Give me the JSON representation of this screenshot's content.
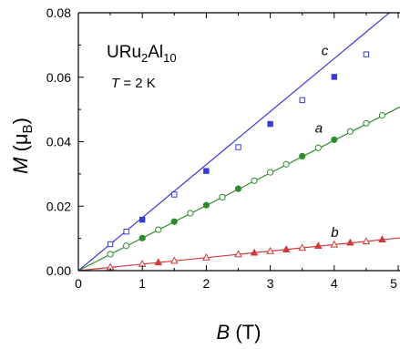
{
  "chart_data": {
    "type": "scatter",
    "xlabel": {
      "symbol": "B",
      "unit": "(T)"
    },
    "ylabel": {
      "symbol": "M",
      "unit_open": "(",
      "unit_sym": "μ",
      "unit_sub": "B",
      "unit_close": ")"
    },
    "xlim": [
      0,
      5
    ],
    "ylim": [
      0,
      0.08
    ],
    "x_ticks": [
      "0",
      "1",
      "2",
      "3",
      "4",
      "5"
    ],
    "y_ticks": [
      "0.00",
      "0.02",
      "0.04",
      "0.06",
      "0.08"
    ],
    "grid": false,
    "annotations": {
      "compound": {
        "part1": "URu",
        "sub1": "2",
        "part2": "Al",
        "sub2": "10"
      },
      "temperature": {
        "symbol": "T",
        "value": " = 2 K"
      }
    },
    "series": [
      {
        "name": "c",
        "color": "#3a3ad6",
        "marker": "square",
        "fit_slope": 0.01645,
        "open_points": {
          "x": [
            0.5,
            0.75,
            1.5,
            2.5,
            3.5,
            4.5
          ],
          "y": [
            0.0082,
            0.0121,
            0.0236,
            0.0383,
            0.0529,
            0.0671
          ]
        },
        "filled_points": {
          "x": [
            1.0,
            2.0,
            3.0,
            4.0
          ],
          "y": [
            0.0158,
            0.0309,
            0.0455,
            0.0601
          ]
        }
      },
      {
        "name": "a",
        "color": "#2e8b2e",
        "marker": "circle",
        "fit_slope": 0.0101,
        "open_points": {
          "x": [
            0.5,
            0.75,
            1.25,
            1.75,
            2.25,
            2.75,
            3.0,
            3.25,
            3.75,
            4.25,
            4.5,
            4.75
          ],
          "y": [
            0.0051,
            0.0077,
            0.0127,
            0.0178,
            0.0228,
            0.0279,
            0.0305,
            0.033,
            0.0381,
            0.0432,
            0.0457,
            0.0482
          ]
        },
        "filled_points": {
          "x": [
            1.0,
            1.5,
            2.0,
            2.5,
            3.5,
            4.0
          ],
          "y": [
            0.0101,
            0.0152,
            0.0203,
            0.0254,
            0.0355,
            0.0406
          ]
        }
      },
      {
        "name": "b",
        "color": "#d03a3a",
        "marker": "triangle",
        "fit_slope": 0.00202,
        "open_points": {
          "x": [
            0.5,
            1.0,
            1.5,
            2.0,
            2.5,
            3.0,
            3.5,
            4.0,
            4.5
          ],
          "y": [
            0.0011,
            0.0021,
            0.0031,
            0.0041,
            0.0051,
            0.0061,
            0.0071,
            0.0081,
            0.0091
          ]
        },
        "filled_points": {
          "x": [
            1.25,
            2.75,
            3.25,
            3.75,
            4.25,
            4.75
          ],
          "y": [
            0.0026,
            0.0056,
            0.0066,
            0.0077,
            0.0087,
            0.0097
          ]
        }
      }
    ]
  }
}
